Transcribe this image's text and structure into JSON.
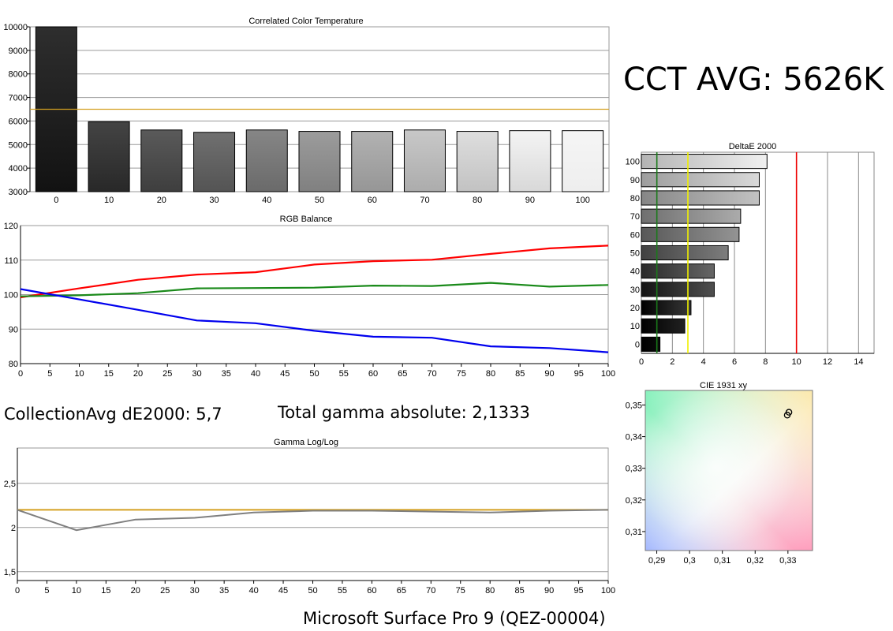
{
  "summary": {
    "cct_avg": "CCT AVG: 5626K",
    "collection_avg": "CollectionAvg dE2000: 5,7",
    "gamma_total": "Total gamma absolute: 2,1333",
    "footer": "Microsoft Surface Pro 9 (QEZ-00004)"
  },
  "colors": {
    "red": "#ff0000",
    "green": "#1a8a1a",
    "blue": "#0000ee",
    "target_orange": "#d4a020",
    "gamma_gray": "#7f7f7f",
    "threshold_green": "#1a7a1a",
    "threshold_yellow": "#f0f000",
    "threshold_red": "#ee0000"
  },
  "chart_data": [
    {
      "id": "cct",
      "type": "bar",
      "title": "Correlated Color Temperature",
      "categories": [
        "0",
        "10",
        "20",
        "30",
        "40",
        "50",
        "60",
        "70",
        "80",
        "90",
        "100"
      ],
      "values": [
        10000,
        5970,
        5620,
        5520,
        5620,
        5560,
        5560,
        5620,
        5560,
        5590,
        5590
      ],
      "target_line": 6500,
      "ylim": [
        3000,
        10000
      ],
      "yticks": [
        "3000",
        "4000",
        "5000",
        "6000",
        "7000",
        "8000",
        "9000",
        "10000"
      ],
      "grid": true
    },
    {
      "id": "rgb",
      "type": "line",
      "title": "RGB Balance",
      "x": [
        0,
        10,
        20,
        30,
        40,
        50,
        60,
        70,
        80,
        90,
        100
      ],
      "series": [
        {
          "color": "red",
          "values": [
            99.2,
            101.8,
            104.3,
            105.8,
            106.5,
            108.7,
            109.7,
            110.1,
            111.8,
            113.4,
            114.2
          ]
        },
        {
          "color": "green",
          "values": [
            99.5,
            99.8,
            100.4,
            101.8,
            101.9,
            102.0,
            102.6,
            102.5,
            103.4,
            102.3,
            102.8
          ]
        },
        {
          "color": "blue",
          "values": [
            101.6,
            98.6,
            95.6,
            92.5,
            91.7,
            89.5,
            87.8,
            87.5,
            85.0,
            84.5,
            83.3
          ]
        }
      ],
      "xlim": [
        0,
        100
      ],
      "ylim": [
        80,
        120
      ],
      "xticks": [
        "0",
        "5",
        "10",
        "15",
        "20",
        "25",
        "30",
        "35",
        "40",
        "45",
        "50",
        "55",
        "60",
        "65",
        "70",
        "75",
        "80",
        "85",
        "90",
        "95",
        "100"
      ],
      "yticks": [
        "80",
        "90",
        "100",
        "110",
        "120"
      ],
      "grid": true
    },
    {
      "id": "deltae",
      "type": "bar",
      "orientation": "horizontal",
      "title": "DeltaE 2000",
      "categories": [
        "0",
        "10",
        "20",
        "30",
        "40",
        "50",
        "60",
        "70",
        "80",
        "90",
        "100"
      ],
      "values": [
        1.2,
        2.8,
        3.2,
        4.7,
        4.7,
        5.6,
        6.3,
        6.4,
        7.6,
        7.6,
        8.1
      ],
      "xlim": [
        0,
        15
      ],
      "xticks": [
        "0",
        "2",
        "4",
        "6",
        "8",
        "10",
        "12",
        "14"
      ],
      "thresholds": [
        1,
        3,
        10
      ],
      "grid": true
    },
    {
      "id": "cie",
      "type": "scatter",
      "title": "CIE 1931 xy",
      "points": [
        [
          0.3298,
          0.3468
        ],
        [
          0.3303,
          0.3477
        ]
      ],
      "xlim": [
        0.2865,
        0.3375
      ],
      "ylim": [
        0.304,
        0.3546
      ],
      "xticks": [
        "0,29",
        "0,3",
        "0,31",
        "0,32",
        "0,33"
      ],
      "xtick_values": [
        0.29,
        0.3,
        0.31,
        0.32,
        0.33
      ],
      "yticks": [
        "0,31",
        "0,32",
        "0,33",
        "0,34",
        "0,35"
      ],
      "ytick_values": [
        0.31,
        0.32,
        0.33,
        0.34,
        0.35
      ]
    },
    {
      "id": "gamma",
      "type": "line",
      "title": "Gamma Log/Log",
      "x": [
        0,
        10,
        20,
        30,
        40,
        50,
        60,
        70,
        80,
        90,
        100
      ],
      "series": [
        {
          "color": "gamma_gray",
          "values": [
            2.2,
            1.97,
            2.09,
            2.11,
            2.17,
            2.19,
            2.19,
            2.18,
            2.17,
            2.19,
            2.2
          ]
        }
      ],
      "target_line": 2.2,
      "xlim": [
        0,
        100
      ],
      "ylim": [
        1.4,
        2.9
      ],
      "xticks": [
        "0",
        "5",
        "10",
        "15",
        "20",
        "25",
        "30",
        "35",
        "40",
        "45",
        "50",
        "55",
        "60",
        "65",
        "70",
        "75",
        "80",
        "85",
        "90",
        "95",
        "100"
      ],
      "yticks": [
        "1,5",
        "2",
        "2,5"
      ],
      "ytick_values": [
        1.5,
        2.0,
        2.5
      ],
      "grid": true
    }
  ]
}
